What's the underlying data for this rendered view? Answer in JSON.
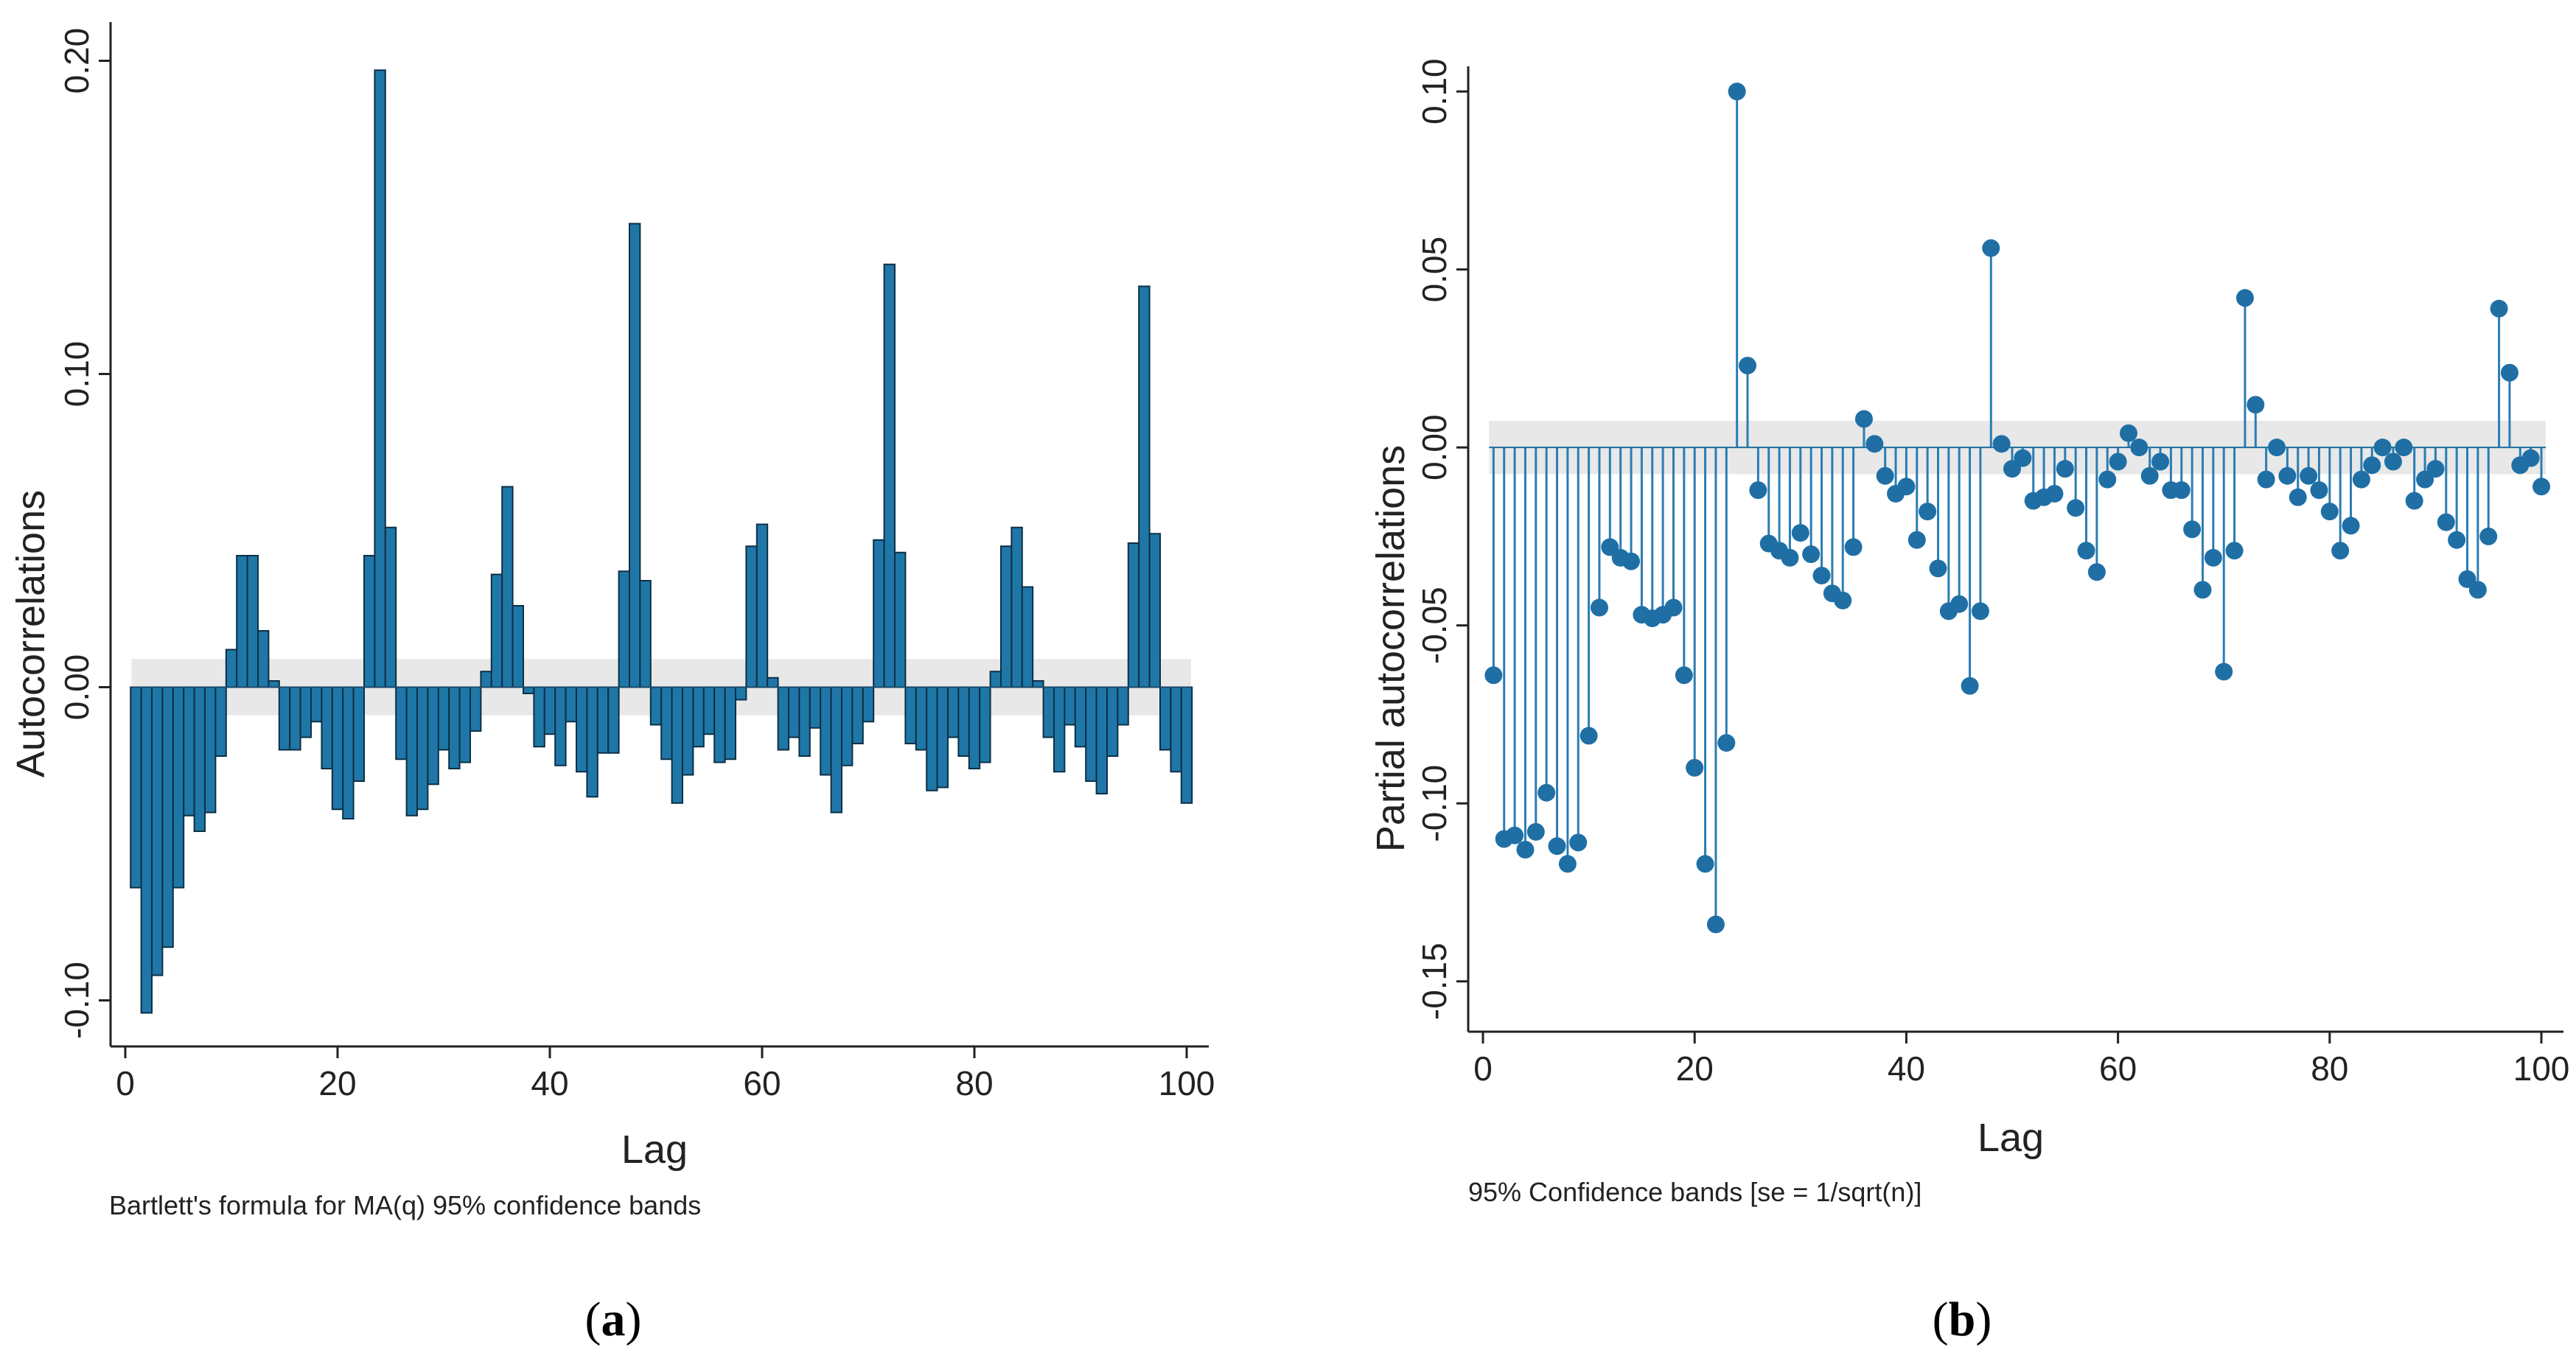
{
  "chart_data": [
    {
      "type": "bar",
      "panel_label": "a",
      "xlabel": "Lag",
      "ylabel": "Autocorrelations",
      "note": "Bartlett's formula for MA(q) 95% confidence bands",
      "xlim": [
        0,
        100
      ],
      "ylim": [
        -0.11,
        0.21
      ],
      "xticks": [
        "0",
        "20",
        "40",
        "60",
        "80",
        "100"
      ],
      "yticks": [
        "-0.10",
        "0.00",
        "0.10",
        "0.20"
      ],
      "confidence_band": [
        -0.009,
        0.009
      ],
      "x": [
        1,
        2,
        3,
        4,
        5,
        6,
        7,
        8,
        9,
        10,
        11,
        12,
        13,
        14,
        15,
        16,
        17,
        18,
        19,
        20,
        21,
        22,
        23,
        24,
        25,
        26,
        27,
        28,
        29,
        30,
        31,
        32,
        33,
        34,
        35,
        36,
        37,
        38,
        39,
        40,
        41,
        42,
        43,
        44,
        45,
        46,
        47,
        48,
        49,
        50,
        51,
        52,
        53,
        54,
        55,
        56,
        57,
        58,
        59,
        60,
        61,
        62,
        63,
        64,
        65,
        66,
        67,
        68,
        69,
        70,
        71,
        72,
        73,
        74,
        75,
        76,
        77,
        78,
        79,
        80,
        81,
        82,
        83,
        84,
        85,
        86,
        87,
        88,
        89,
        90,
        91,
        92,
        93,
        94,
        95,
        96,
        97,
        98,
        99,
        100
      ],
      "values": [
        -0.064,
        -0.104,
        -0.092,
        -0.083,
        -0.064,
        -0.041,
        -0.046,
        -0.04,
        -0.022,
        0.012,
        0.042,
        0.042,
        0.018,
        0.002,
        -0.02,
        -0.02,
        -0.016,
        -0.011,
        -0.026,
        -0.039,
        -0.042,
        -0.03,
        0.042,
        0.197,
        0.051,
        -0.023,
        -0.041,
        -0.039,
        -0.031,
        -0.02,
        -0.026,
        -0.024,
        -0.014,
        0.005,
        0.036,
        0.064,
        0.026,
        -0.002,
        -0.019,
        -0.015,
        -0.025,
        -0.011,
        -0.027,
        -0.035,
        -0.021,
        -0.021,
        0.037,
        0.148,
        0.034,
        -0.012,
        -0.023,
        -0.037,
        -0.028,
        -0.019,
        -0.015,
        -0.024,
        -0.023,
        -0.004,
        0.045,
        0.052,
        0.003,
        -0.02,
        -0.016,
        -0.022,
        -0.013,
        -0.028,
        -0.04,
        -0.025,
        -0.018,
        -0.011,
        0.047,
        0.135,
        0.043,
        -0.018,
        -0.02,
        -0.033,
        -0.032,
        -0.016,
        -0.022,
        -0.026,
        -0.024,
        0.005,
        0.045,
        0.051,
        0.032,
        0.002,
        -0.016,
        -0.027,
        -0.012,
        -0.019,
        -0.03,
        -0.034,
        -0.022,
        -0.012,
        0.046,
        0.128,
        0.049,
        -0.02,
        -0.027,
        -0.037
      ]
    },
    {
      "type": "scatter",
      "panel_label": "b",
      "xlabel": "Lag",
      "ylabel": "Partial autocorrelations",
      "note": "95% Confidence bands [se = 1/sqrt(n)]",
      "xlim": [
        0,
        100
      ],
      "ylim": [
        -0.16,
        0.105
      ],
      "xticks": [
        "0",
        "20",
        "40",
        "60",
        "80",
        "100"
      ],
      "yticks": [
        "-0.15",
        "-0.10",
        "-0.05",
        "0.00",
        "0.05",
        "0.10"
      ],
      "confidence_band": [
        -0.0075,
        0.0075
      ],
      "x": [
        1,
        2,
        3,
        4,
        5,
        6,
        7,
        8,
        9,
        10,
        11,
        12,
        13,
        14,
        15,
        16,
        17,
        18,
        19,
        20,
        21,
        22,
        23,
        24,
        25,
        26,
        27,
        28,
        29,
        30,
        31,
        32,
        33,
        34,
        35,
        36,
        37,
        38,
        39,
        40,
        41,
        42,
        43,
        44,
        45,
        46,
        47,
        48,
        49,
        50,
        51,
        52,
        53,
        54,
        55,
        56,
        57,
        58,
        59,
        60,
        61,
        62,
        63,
        64,
        65,
        66,
        67,
        68,
        69,
        70,
        71,
        72,
        73,
        74,
        75,
        76,
        77,
        78,
        79,
        80,
        81,
        82,
        83,
        84,
        85,
        86,
        87,
        88,
        89,
        90,
        91,
        92,
        93,
        94,
        95,
        96,
        97,
        98,
        99,
        100
      ],
      "values": [
        -0.064,
        -0.11,
        -0.109,
        -0.113,
        -0.108,
        -0.097,
        -0.112,
        -0.117,
        -0.111,
        -0.081,
        -0.045,
        -0.028,
        -0.031,
        -0.032,
        -0.047,
        -0.048,
        -0.047,
        -0.045,
        -0.064,
        -0.09,
        -0.117,
        -0.134,
        -0.083,
        0.1,
        0.023,
        -0.012,
        -0.027,
        -0.029,
        -0.031,
        -0.024,
        -0.03,
        -0.036,
        -0.041,
        -0.043,
        -0.028,
        0.008,
        0.001,
        -0.008,
        -0.013,
        -0.011,
        -0.026,
        -0.018,
        -0.034,
        -0.046,
        -0.044,
        -0.067,
        -0.046,
        0.056,
        0.001,
        -0.006,
        -0.003,
        -0.015,
        -0.014,
        -0.013,
        -0.006,
        -0.017,
        -0.029,
        -0.035,
        -0.009,
        -0.004,
        0.004,
        0.0,
        -0.008,
        -0.004,
        -0.012,
        -0.012,
        -0.023,
        -0.04,
        -0.031,
        -0.063,
        -0.029,
        0.042,
        0.012,
        -0.009,
        0.0,
        -0.008,
        -0.014,
        -0.008,
        -0.012,
        -0.018,
        -0.029,
        -0.022,
        -0.009,
        -0.005,
        0.0,
        -0.004,
        0.0,
        -0.015,
        -0.009,
        -0.006,
        -0.021,
        -0.026,
        -0.037,
        -0.04,
        -0.025,
        0.039,
        0.021,
        -0.005,
        -0.003,
        -0.011
      ]
    }
  ]
}
